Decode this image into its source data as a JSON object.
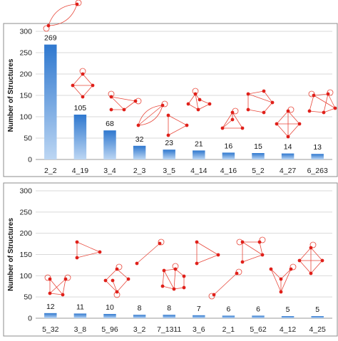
{
  "chart_data": [
    {
      "type": "bar",
      "ylabel": "Number of Structures",
      "ylim": [
        0,
        300
      ],
      "yticks": [
        0,
        50,
        100,
        150,
        200,
        250,
        300
      ],
      "grid": true,
      "categories": [
        "2_2",
        "4_19",
        "3_4",
        "2_3",
        "3_5",
        "4_14",
        "4_16",
        "5_2",
        "4_27",
        "6_263"
      ],
      "values": [
        269,
        105,
        68,
        32,
        23,
        21,
        16,
        15,
        14,
        13
      ],
      "data_labels": [
        "269",
        "105",
        "68",
        "32",
        "23",
        "21",
        "16",
        "15",
        "14",
        "13"
      ],
      "bar_color": "#4a8fd8",
      "motif_color": "#e0201a"
    },
    {
      "type": "bar",
      "ylabel": "Number of Structures",
      "ylim": [
        0,
        300
      ],
      "yticks": [
        0,
        50,
        100,
        150,
        200,
        250,
        300
      ],
      "grid": true,
      "categories": [
        "5_32",
        "3_8",
        "5_96",
        "3_2",
        "7_1311",
        "3_6",
        "2_1",
        "5_62",
        "4_12",
        "4_25"
      ],
      "values": [
        12,
        11,
        10,
        8,
        8,
        7,
        6,
        6,
        5,
        5
      ],
      "data_labels": [
        "12",
        "11",
        "10",
        "8",
        "8",
        "7",
        "6",
        "6",
        "5",
        "5"
      ],
      "bar_color": "#4a8fd8",
      "motif_color": "#e0201a"
    }
  ]
}
